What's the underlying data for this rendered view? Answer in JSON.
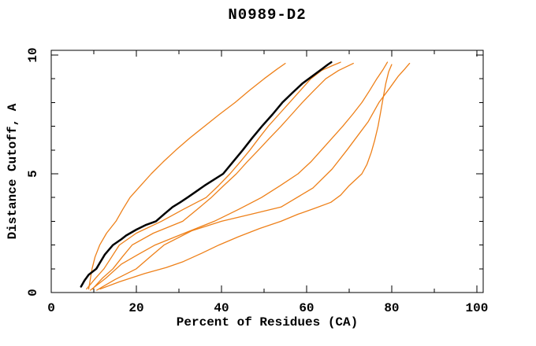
{
  "chart_data": {
    "type": "line",
    "title": "N0989-D2",
    "xlabel": "Percent of Residues (CA)",
    "ylabel": "Distance Cutoff, A",
    "xlim": [
      0,
      101.5
    ],
    "ylim": [
      0,
      10.2
    ],
    "grid": false,
    "legend": "none",
    "x_ticks": {
      "major": [
        0,
        20,
        40,
        60,
        80,
        100
      ],
      "labels": [
        "0",
        "20",
        "40",
        "60",
        "80",
        "100"
      ],
      "minor": [
        10,
        30,
        50,
        70,
        90
      ]
    },
    "y_ticks": {
      "major": [
        0,
        5,
        10
      ],
      "labels": [
        "0",
        "5",
        "10"
      ],
      "minor": [
        1,
        2,
        3,
        4,
        6,
        7,
        8,
        9
      ]
    },
    "colors": {
      "model": "#ee8019",
      "reference": "#000000"
    },
    "series": [
      {
        "name": "model-orange-1",
        "color": "#ee8019",
        "width": 1.3,
        "points": [
          [
            8.8,
            0.15
          ],
          [
            9.6,
            1
          ],
          [
            10.3,
            1.5
          ],
          [
            11.4,
            2
          ],
          [
            13,
            2.5
          ],
          [
            15.2,
            3
          ],
          [
            16.8,
            3.5
          ],
          [
            18.5,
            4
          ],
          [
            21,
            4.5
          ],
          [
            23.5,
            5
          ],
          [
            26.3,
            5.5
          ],
          [
            29.3,
            6
          ],
          [
            32.5,
            6.5
          ],
          [
            36,
            7
          ],
          [
            39.5,
            7.5
          ],
          [
            43.2,
            8
          ],
          [
            46.5,
            8.5
          ],
          [
            50,
            9
          ],
          [
            53,
            9.4
          ],
          [
            55,
            9.65
          ]
        ]
      },
      {
        "name": "model-orange-2",
        "color": "#ee8019",
        "width": 1.3,
        "points": [
          [
            8.3,
            0.15
          ],
          [
            10.4,
            0.6
          ],
          [
            12.4,
            1
          ],
          [
            14.2,
            1.5
          ],
          [
            16,
            2
          ],
          [
            20,
            2.5
          ],
          [
            25.9,
            3
          ],
          [
            31,
            3.5
          ],
          [
            36.4,
            4
          ],
          [
            39.3,
            4.5
          ],
          [
            42,
            5
          ],
          [
            44.4,
            5.5
          ],
          [
            46.7,
            6
          ],
          [
            48.8,
            6.5
          ],
          [
            51,
            7
          ],
          [
            53.5,
            7.5
          ],
          [
            56,
            8
          ],
          [
            58.5,
            8.5
          ],
          [
            61,
            9
          ],
          [
            63.5,
            9.35
          ],
          [
            66,
            9.55
          ],
          [
            68,
            9.7
          ]
        ]
      },
      {
        "name": "model-orange-3",
        "color": "#ee8019",
        "width": 1.3,
        "points": [
          [
            9.7,
            0.15
          ],
          [
            12,
            0.6
          ],
          [
            14.5,
            1
          ],
          [
            16.7,
            1.5
          ],
          [
            19,
            2
          ],
          [
            24,
            2.5
          ],
          [
            30.9,
            3
          ],
          [
            34.3,
            3.5
          ],
          [
            37.6,
            4
          ],
          [
            40.5,
            4.5
          ],
          [
            43.5,
            5
          ],
          [
            46,
            5.5
          ],
          [
            48.7,
            6
          ],
          [
            51.3,
            6.5
          ],
          [
            54,
            7
          ],
          [
            56.5,
            7.5
          ],
          [
            59,
            8
          ],
          [
            61.7,
            8.5
          ],
          [
            64.5,
            9
          ],
          [
            67.5,
            9.35
          ],
          [
            71,
            9.65
          ]
        ]
      },
      {
        "name": "model-orange-4",
        "color": "#ee8019",
        "width": 1.3,
        "points": [
          [
            9.2,
            0.1
          ],
          [
            12.8,
            0.6
          ],
          [
            16.5,
            1.2
          ],
          [
            20.4,
            1.6
          ],
          [
            24.4,
            2
          ],
          [
            31.3,
            2.5
          ],
          [
            38.3,
            3
          ],
          [
            44,
            3.5
          ],
          [
            49.4,
            4
          ],
          [
            53.8,
            4.5
          ],
          [
            58,
            5
          ],
          [
            61,
            5.5
          ],
          [
            63.5,
            6
          ],
          [
            66,
            6.5
          ],
          [
            68.5,
            7
          ],
          [
            70.8,
            7.5
          ],
          [
            73,
            8
          ],
          [
            74.8,
            8.5
          ],
          [
            76.5,
            9
          ],
          [
            78,
            9.4
          ],
          [
            79,
            9.7
          ]
        ]
      },
      {
        "name": "model-orange-5",
        "color": "#ee8019",
        "width": 1.3,
        "points": [
          [
            11.5,
            0.15
          ],
          [
            16,
            0.45
          ],
          [
            22,
            0.8
          ],
          [
            27,
            1.05
          ],
          [
            31,
            1.3
          ],
          [
            35.3,
            1.65
          ],
          [
            39.4,
            2
          ],
          [
            44,
            2.35
          ],
          [
            49,
            2.7
          ],
          [
            54,
            3
          ],
          [
            58,
            3.3
          ],
          [
            62,
            3.55
          ],
          [
            65.7,
            3.8
          ],
          [
            68,
            4.1
          ],
          [
            70,
            4.5
          ],
          [
            71.8,
            4.8
          ],
          [
            73,
            5
          ],
          [
            74.2,
            5.4
          ],
          [
            75.2,
            5.9
          ],
          [
            76,
            6.4
          ],
          [
            76.8,
            7
          ],
          [
            77.4,
            7.6
          ],
          [
            78,
            8.2
          ],
          [
            78.6,
            8.8
          ],
          [
            79.3,
            9.3
          ],
          [
            80,
            9.6
          ]
        ]
      },
      {
        "name": "model-orange-6",
        "color": "#ee8019",
        "width": 1.3,
        "points": [
          [
            10.7,
            0.1
          ],
          [
            15,
            0.55
          ],
          [
            20,
            1
          ],
          [
            23.2,
            1.5
          ],
          [
            26.5,
            2
          ],
          [
            33,
            2.6
          ],
          [
            40,
            3
          ],
          [
            47,
            3.3
          ],
          [
            54,
            3.6
          ],
          [
            61.5,
            4.4
          ],
          [
            66,
            5.2
          ],
          [
            69.5,
            6
          ],
          [
            72,
            6.6
          ],
          [
            74.5,
            7.2
          ],
          [
            77,
            8
          ],
          [
            79.5,
            8.6
          ],
          [
            81.5,
            9.1
          ],
          [
            83,
            9.4
          ],
          [
            84.2,
            9.65
          ]
        ]
      },
      {
        "name": "reference-black",
        "color": "#000000",
        "width": 2.5,
        "points": [
          [
            7,
            0.25
          ],
          [
            7.8,
            0.5
          ],
          [
            8.8,
            0.75
          ],
          [
            10.6,
            1
          ],
          [
            11.6,
            1.3
          ],
          [
            12.6,
            1.6
          ],
          [
            14.5,
            2
          ],
          [
            16.5,
            2.25
          ],
          [
            17.6,
            2.4
          ],
          [
            20,
            2.65
          ],
          [
            22.3,
            2.85
          ],
          [
            24.6,
            3
          ],
          [
            26.5,
            3.3
          ],
          [
            28.5,
            3.6
          ],
          [
            30.3,
            3.8
          ],
          [
            32,
            4
          ],
          [
            34,
            4.25
          ],
          [
            36,
            4.5
          ],
          [
            38.2,
            4.75
          ],
          [
            40.4,
            5
          ],
          [
            42.7,
            5.5
          ],
          [
            45,
            6
          ],
          [
            47.2,
            6.5
          ],
          [
            49.5,
            7
          ],
          [
            52,
            7.5
          ],
          [
            54.3,
            8
          ],
          [
            56.6,
            8.4
          ],
          [
            59,
            8.8
          ],
          [
            60.5,
            9
          ],
          [
            62,
            9.2
          ],
          [
            63.5,
            9.4
          ],
          [
            65,
            9.6
          ],
          [
            65.8,
            9.7
          ]
        ]
      }
    ]
  }
}
